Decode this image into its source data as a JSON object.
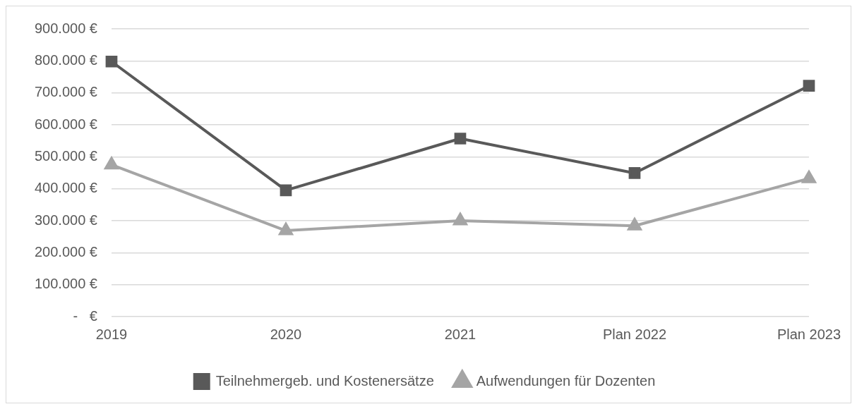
{
  "chart_data": {
    "type": "line",
    "categories": [
      "2019",
      "2020",
      "2021",
      "Plan 2022",
      "Plan 2023"
    ],
    "series": [
      {
        "name": "Teilnehmergeb. und Kostenersätze",
        "color": "#595959",
        "marker": "square",
        "values": [
          798000,
          395000,
          557000,
          449000,
          722000
        ]
      },
      {
        "name": "Aufwendungen für Dozenten",
        "color": "#a5a5a5",
        "marker": "triangle",
        "values": [
          475000,
          269000,
          300000,
          284000,
          432000
        ]
      }
    ],
    "ylim": [
      0,
      900000
    ],
    "yticks": [
      {
        "value": 0,
        "label": "-   €"
      },
      {
        "value": 100000,
        "label": "100.000 €"
      },
      {
        "value": 200000,
        "label": "200.000 €"
      },
      {
        "value": 300000,
        "label": "300.000 €"
      },
      {
        "value": 400000,
        "label": "400.000 €"
      },
      {
        "value": 500000,
        "label": "500.000 €"
      },
      {
        "value": 600000,
        "label": "600.000 €"
      },
      {
        "value": 700000,
        "label": "700.000 €"
      },
      {
        "value": 800000,
        "label": "800.000 €"
      },
      {
        "value": 900000,
        "label": "900.000 €"
      }
    ],
    "grid": "y",
    "legend": "bottom"
  }
}
